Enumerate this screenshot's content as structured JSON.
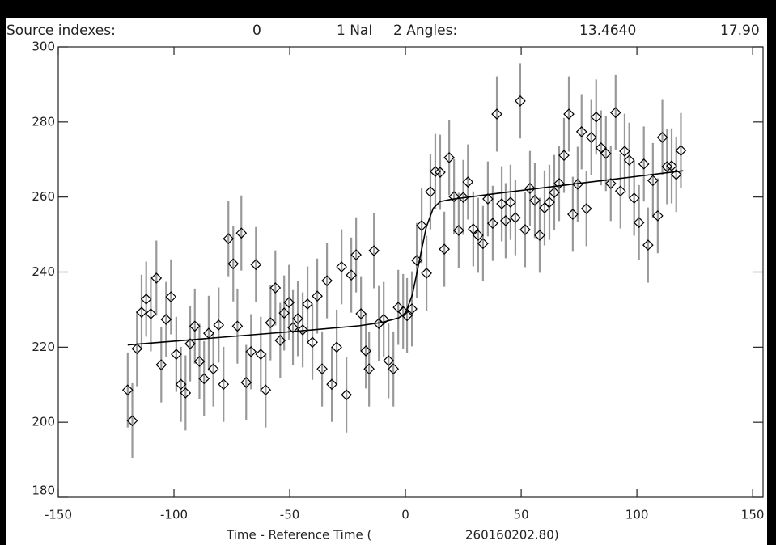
{
  "chart_data": {
    "type": "scatter",
    "title_parts": [
      "Source indexes:",
      "0",
      "1 NaI",
      "2 Angles:",
      "13.4640",
      "17.90"
    ],
    "xlabel_parts": [
      "Time - Reference Time (",
      "260160202.80)"
    ],
    "xlim": [
      -150,
      154.5
    ],
    "ylim": [
      180,
      300
    ],
    "xticks": [
      -150,
      -100,
      -50,
      0,
      50,
      100,
      150
    ],
    "yticks": [
      180,
      200,
      220,
      240,
      260,
      280,
      300
    ],
    "series": [
      {
        "color": "#000000",
        "error_color": "#999999",
        "error": 10,
        "x": [
          -120,
          -118,
          -116,
          -114,
          -112,
          -110,
          -107.6,
          -105.5,
          -103.4,
          -101.3,
          -99,
          -97,
          -95,
          -93,
          -91,
          -89,
          -87,
          -85,
          -83,
          -80.7,
          -78.6,
          -76.5,
          -74.4,
          -72.6,
          -70.9,
          -68.8,
          -66.7,
          -64.6,
          -62.5,
          -60.4,
          -58.3,
          -56.2,
          -54.1,
          -52.4,
          -50.3,
          -48.6,
          -46.5,
          -44.4,
          -42.3,
          -40.2,
          -38.1,
          -36,
          -33.9,
          -31.8,
          -29.7,
          -27.6,
          -25.5,
          -23.4,
          -21.3,
          -19.2,
          -17.1,
          -15.7,
          -13.6,
          -11.5,
          -9.4,
          -7.3,
          -5.2,
          -3.1,
          -1,
          0.7,
          2.8,
          4.9,
          7,
          9.1,
          10.8,
          12.9,
          15,
          16.8,
          18.9,
          21,
          23,
          25,
          27,
          29.3,
          31.4,
          33.5,
          35.6,
          37.7,
          39.5,
          41.6,
          43.3,
          45.4,
          47.5,
          49.6,
          51.7,
          53.8,
          55.9,
          58,
          60.1,
          62.2,
          64.3,
          66.4,
          68.5,
          70.6,
          72.3,
          74.4,
          76.1,
          78.2,
          80.3,
          82.4,
          84.5,
          86.6,
          88.7,
          90.8,
          92.9,
          94.7,
          96.7,
          98.8,
          100.9,
          103,
          104.8,
          106.9,
          109,
          111,
          113,
          115,
          117,
          119
        ],
        "values": [
          208.6,
          200.4,
          219.6,
          229.3,
          232.8,
          228.9,
          238.4,
          215.3,
          227.4,
          233.4,
          218.1,
          210.1,
          207.8,
          220.9,
          225.6,
          216.2,
          211.6,
          223.7,
          214.2,
          225.9,
          210.1,
          248.9,
          242.2,
          225.6,
          250.4,
          210.6,
          218.8,
          242.0,
          218.1,
          208.6,
          226.5,
          235.8,
          221.8,
          229.1,
          231.9,
          225.2,
          227.6,
          224.6,
          231.5,
          221.3,
          233.6,
          214.2,
          237.7,
          210.1,
          220.0,
          241.4,
          207.3,
          239.2,
          244.6,
          228.9,
          219.0,
          214.2,
          245.7,
          226.3,
          227.4,
          216.4,
          214.2,
          230.6,
          229.5,
          228.4,
          230.2,
          243.1,
          252.4,
          239.7,
          261.4,
          266.8,
          266.6,
          246.1,
          270.5,
          260.1,
          251.1,
          259.9,
          264.0,
          251.5,
          249.8,
          247.6,
          259.5,
          253.0,
          282.1,
          258.2,
          253.7,
          258.6,
          254.5,
          285.6,
          251.3,
          262.3,
          259.1,
          249.8,
          257.1,
          258.6,
          261.2,
          263.6,
          271.1,
          282.1,
          255.4,
          263.4,
          277.4,
          256.9,
          275.9,
          281.3,
          273.1,
          271.6,
          263.6,
          282.5,
          261.6,
          272.2,
          269.8,
          259.7,
          253.2,
          268.8,
          247.2,
          264.4,
          255.0,
          275.9,
          268.1,
          268.3,
          266.0,
          272.4
        ]
      },
      {
        "type": "line",
        "color": "#000000",
        "x": [
          -120,
          -100,
          -80,
          -60,
          -40,
          -20,
          -10,
          -3,
          0,
          3,
          6,
          9,
          12,
          15,
          20,
          40,
          60,
          80,
          100,
          120
        ],
        "values": [
          220.6,
          221.6,
          222.6,
          223.6,
          224.6,
          225.7,
          226.6,
          227.8,
          229,
          234,
          243,
          252,
          257,
          258.8,
          259.4,
          261,
          262.5,
          264,
          265.5,
          267
        ]
      }
    ]
  }
}
